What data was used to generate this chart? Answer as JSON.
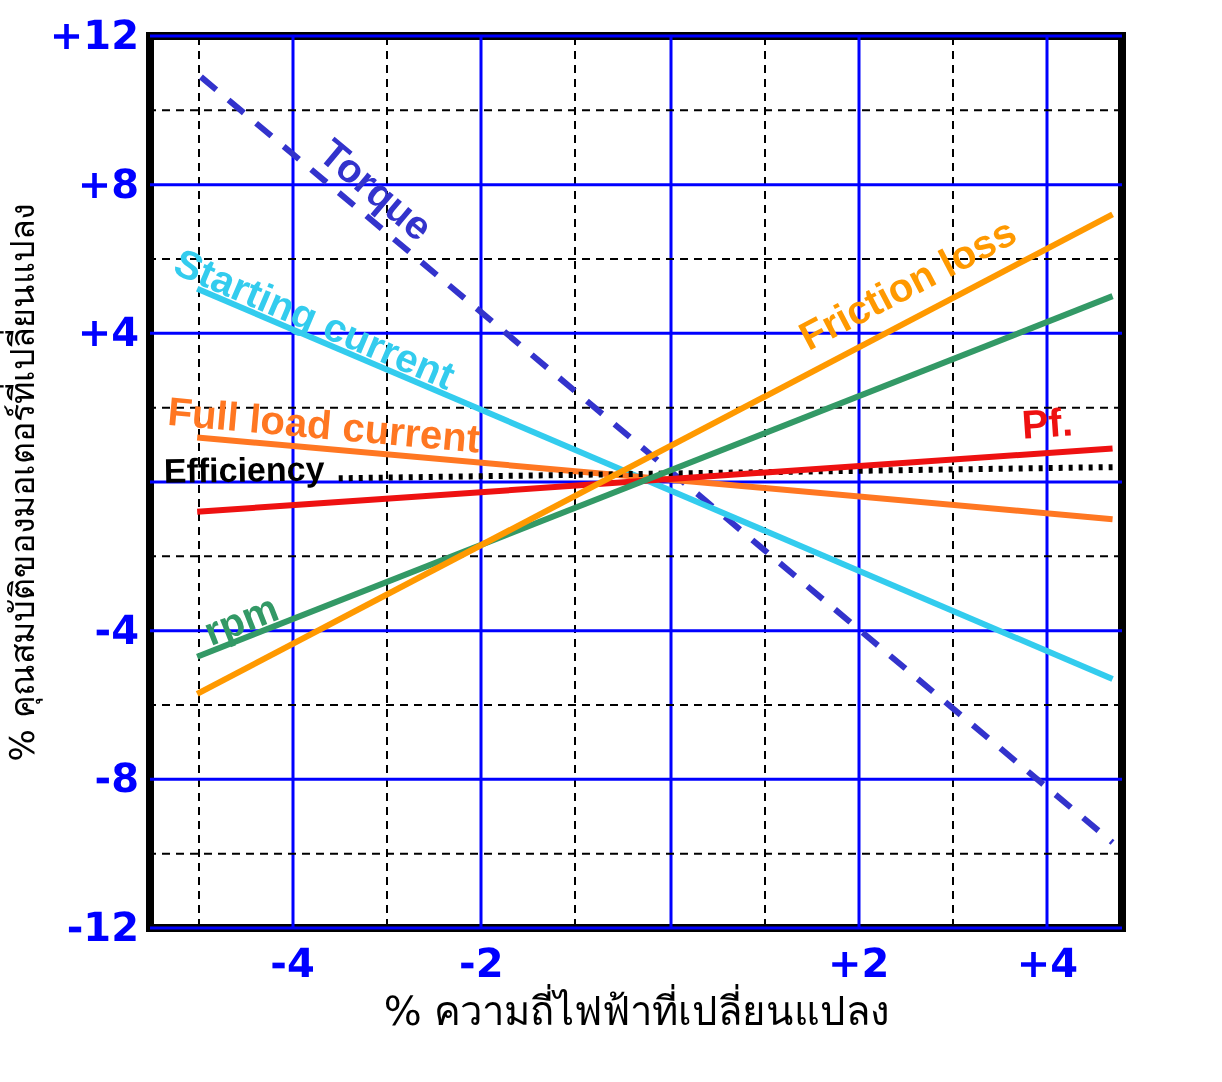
{
  "chart_data": {
    "type": "line",
    "xlabel": "% ความถี่ไฟฟ้าที่เปลี่ยนแปลง",
    "ylabel": "% คุณสมบัติของมอเตอร์ที่เปลี่ยนแปลง",
    "xlim": [
      -5.5,
      4.8
    ],
    "ylim": [
      -12,
      12
    ],
    "xticks": [
      {
        "value": -5,
        "label": null
      },
      -4,
      {
        "value": -3,
        "label": null
      },
      -2,
      {
        "value": -1,
        "label": null
      },
      {
        "value": 0,
        "label": null
      },
      {
        "value": 1,
        "label": null
      },
      {
        "value": 2,
        "label": "+2"
      },
      {
        "value": 3,
        "label": null
      },
      {
        "value": 4,
        "label": "+4"
      }
    ],
    "yticks": [
      {
        "value": 12,
        "label": "+12"
      },
      {
        "value": 10,
        "label": null
      },
      {
        "value": 8,
        "label": "+8"
      },
      {
        "value": 6,
        "label": null
      },
      {
        "value": 4,
        "label": "+4"
      },
      {
        "value": 2,
        "label": null
      },
      {
        "value": 0,
        "label": null
      },
      {
        "value": -2,
        "label": null
      },
      -4,
      {
        "value": -6,
        "label": null
      },
      -8,
      {
        "value": -10,
        "label": null
      },
      -12
    ],
    "grid": true,
    "series": [
      {
        "name": "Torque",
        "color": "#3333cc",
        "line_style": "dashed",
        "x": [
          -4.96,
          4.7
        ],
        "values": [
          10.9,
          -9.7
        ]
      },
      {
        "name": "Starting current",
        "color": "#33ccee",
        "x": [
          -5,
          4.7
        ],
        "values": [
          5.2,
          -5.3
        ]
      },
      {
        "name": "Full load current",
        "color": "#ff7722",
        "x": [
          -5,
          4.7
        ],
        "values": [
          1.2,
          -1.0
        ]
      },
      {
        "name": "Efficiency",
        "color": "#000000",
        "line_style": "dotted",
        "x": [
          -3.5,
          4.7
        ],
        "values": [
          0.1,
          0.4
        ]
      },
      {
        "name": "Pf.",
        "color": "#ee1111",
        "x": [
          -5,
          4.7
        ],
        "values": [
          -0.8,
          0.9
        ]
      },
      {
        "name": "rpm",
        "color": "#339966",
        "x": [
          -5,
          4.7
        ],
        "values": [
          -4.7,
          5.0
        ]
      },
      {
        "name": "Friction loss",
        "color": "#ff9900",
        "x": [
          -5,
          4.7
        ],
        "values": [
          -5.7,
          7.2
        ]
      }
    ]
  }
}
